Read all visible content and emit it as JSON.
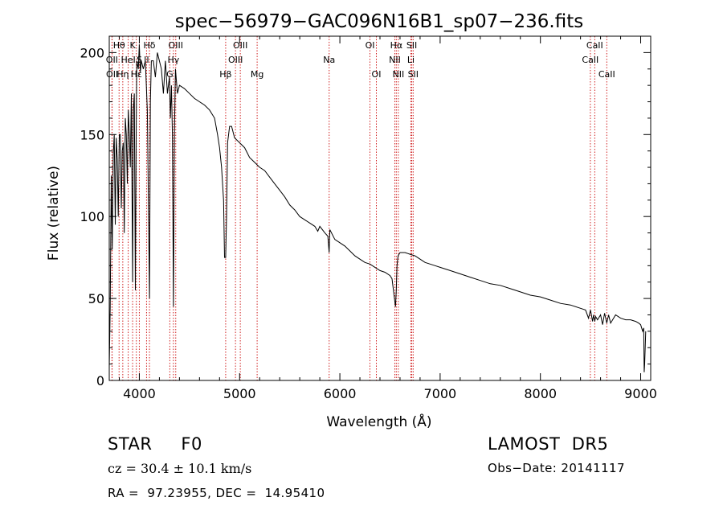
{
  "chart_data": {
    "type": "line",
    "title": "spec−56979−GAC096N16B1_sp07−236.fits",
    "xlabel": "Wavelength (Å)",
    "ylabel": "Flux (relative)",
    "xlim": [
      3700,
      9100
    ],
    "ylim": [
      0,
      210
    ],
    "xticks": [
      4000,
      5000,
      6000,
      7000,
      8000,
      9000
    ],
    "yticks": [
      0,
      50,
      100,
      150,
      200
    ],
    "grid": false,
    "series": [
      {
        "x": [
          3700,
          3710,
          3720,
          3730,
          3740,
          3750,
          3760,
          3770,
          3780,
          3790,
          3800,
          3810,
          3820,
          3830,
          3840,
          3850,
          3860,
          3870,
          3880,
          3890,
          3900,
          3910,
          3920,
          3933,
          3940,
          3950,
          3960,
          3968,
          3975,
          3990,
          4000,
          4010,
          4020,
          4040,
          4060,
          4080,
          4090,
          4101,
          4110,
          4120,
          4140,
          4160,
          4180,
          4200,
          4220,
          4240,
          4260,
          4280,
          4300,
          4310,
          4320,
          4330,
          4340,
          4350,
          4360,
          4380,
          4400,
          4450,
          4500,
          4550,
          4600,
          4650,
          4700,
          4750,
          4780,
          4800,
          4820,
          4840,
          4850,
          4861,
          4870,
          4880,
          4900,
          4920,
          4950,
          5000,
          5050,
          5100,
          5150,
          5200,
          5250,
          5300,
          5350,
          5400,
          5450,
          5500,
          5550,
          5600,
          5650,
          5700,
          5750,
          5780,
          5800,
          5850,
          5880,
          5893,
          5900,
          5950,
          6000,
          6050,
          6100,
          6150,
          6200,
          6250,
          6300,
          6350,
          6400,
          6450,
          6500,
          6520,
          6540,
          6555,
          6563,
          6570,
          6580,
          6600,
          6650,
          6700,
          6750,
          6800,
          6850,
          6900,
          6950,
          7000,
          7100,
          7200,
          7300,
          7400,
          7500,
          7600,
          7700,
          7800,
          7900,
          8000,
          8100,
          8200,
          8300,
          8400,
          8450,
          8480,
          8500,
          8520,
          8530,
          8542,
          8550,
          8570,
          8600,
          8620,
          8640,
          8662,
          8680,
          8700,
          8750,
          8800,
          8850,
          8900,
          8950,
          8980,
          9000,
          9020,
          9030,
          9035,
          9040,
          9050
        ],
        "y": [
          8,
          45,
          125,
          80,
          138,
          150,
          95,
          148,
          135,
          100,
          150,
          150,
          105,
          140,
          145,
          90,
          160,
          150,
          120,
          165,
          150,
          130,
          175,
          60,
          165,
          175,
          55,
          150,
          195,
          190,
          205,
          188,
          195,
          190,
          195,
          165,
          110,
          50,
          170,
          195,
          195,
          185,
          200,
          195,
          190,
          175,
          195,
          175,
          185,
          160,
          180,
          150,
          45,
          150,
          190,
          175,
          180,
          178,
          175,
          172,
          170,
          168,
          165,
          160,
          150,
          142,
          130,
          110,
          75,
          75,
          100,
          145,
          155,
          155,
          148,
          145,
          142,
          136,
          133,
          130,
          128,
          124,
          120,
          116,
          112,
          107,
          104,
          100,
          98,
          96,
          94,
          91,
          94,
          90,
          88,
          78,
          92,
          86,
          84,
          82,
          79,
          76,
          74,
          72,
          71,
          69,
          67,
          66,
          64,
          62,
          52,
          45,
          55,
          70,
          76,
          78,
          78,
          77,
          76,
          74,
          72,
          71,
          70,
          69,
          67,
          65,
          63,
          61,
          59,
          58,
          56,
          54,
          52,
          51,
          49,
          47,
          46,
          44,
          43,
          38,
          43,
          36,
          40,
          36,
          39,
          37,
          40,
          34,
          41,
          35,
          40,
          35,
          40,
          38,
          37,
          37,
          36,
          35,
          34,
          30,
          32,
          5,
          10,
          30
        ]
      }
    ],
    "lines": [
      {
        "name": "Hθ",
        "wl": 3798,
        "row": 0
      },
      {
        "name": "OII",
        "wl": 3727,
        "row": 1
      },
      {
        "name": "OII",
        "wl": 3729,
        "row": 2
      },
      {
        "name": "Hη",
        "wl": 3835,
        "row": 2
      },
      {
        "name": "HeI",
        "wl": 3889,
        "row": 1
      },
      {
        "name": "K",
        "wl": 3933,
        "row": 0
      },
      {
        "name": "Hε",
        "wl": 3970,
        "row": 2
      },
      {
        "name": "S",
        "wl": 4000,
        "row": 1
      },
      {
        "name": "Hδ",
        "wl": 4101,
        "row": 0
      },
      {
        "name": "II",
        "wl": 4072,
        "row": 1
      },
      {
        "name": "OIII",
        "wl": 4363,
        "row": 0
      },
      {
        "name": "Hγ",
        "wl": 4340,
        "row": 1
      },
      {
        "name": "G",
        "wl": 4304,
        "row": 2
      },
      {
        "name": "OIII",
        "wl": 5007,
        "row": 0
      },
      {
        "name": "OIII",
        "wl": 4959,
        "row": 1
      },
      {
        "name": "Hβ",
        "wl": 4861,
        "row": 2
      },
      {
        "name": "Mg",
        "wl": 5175,
        "row": 2
      },
      {
        "name": "Na",
        "wl": 5893,
        "row": 1
      },
      {
        "name": "OI",
        "wl": 6300,
        "row": 0
      },
      {
        "name": "OI",
        "wl": 6364,
        "row": 2
      },
      {
        "name": "Hα",
        "wl": 6563,
        "row": 0
      },
      {
        "name": "NII",
        "wl": 6548,
        "row": 1
      },
      {
        "name": "NII",
        "wl": 6583,
        "row": 2
      },
      {
        "name": "SII",
        "wl": 6717,
        "row": 0
      },
      {
        "name": "Li",
        "wl": 6708,
        "row": 1
      },
      {
        "name": "SII",
        "wl": 6731,
        "row": 2
      },
      {
        "name": "CaII",
        "wl": 8542,
        "row": 0
      },
      {
        "name": "CaII",
        "wl": 8498,
        "row": 1
      },
      {
        "name": "CaII",
        "wl": 8662,
        "row": 2
      }
    ]
  },
  "info": {
    "class": "STAR     F0",
    "cz": "cz = 30.4 ± 10.1 km/s",
    "coords": "RA =  97.23955, DEC =  14.95410",
    "survey": "LAMOST  DR5",
    "obsdate": "Obs−Date: 20141117"
  }
}
